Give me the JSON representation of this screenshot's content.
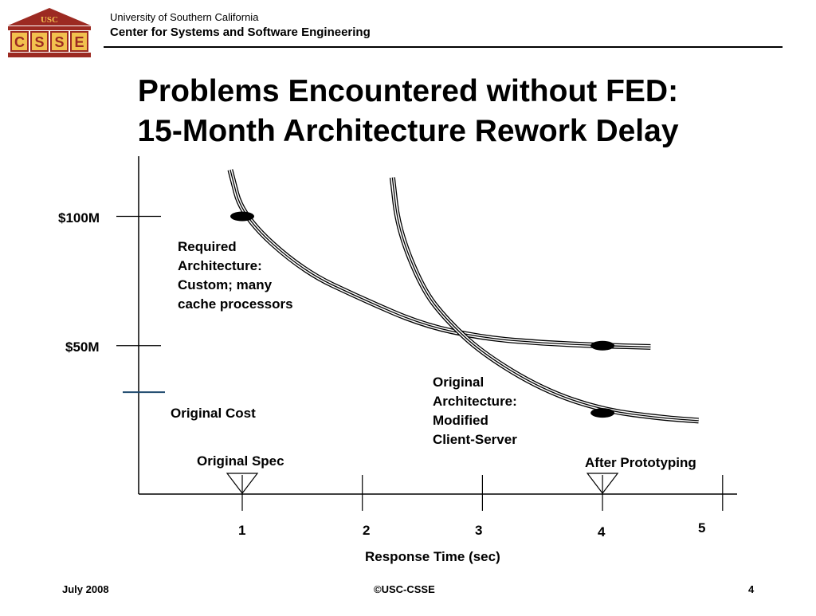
{
  "header": {
    "university": "University of Southern California",
    "center": "Center for Systems and Software Engineering",
    "logo_top_text": "USC",
    "logo_letters": [
      "C",
      "S",
      "S",
      "E"
    ]
  },
  "slide": {
    "title_line1": "Problems Encountered without FED:",
    "title_line2": "15-Month Architecture Rework Delay"
  },
  "chart_data": {
    "type": "line",
    "xlabel": "Response Time (sec)",
    "ylabel": "",
    "x_ticks": [
      "1",
      "2",
      "3",
      "4",
      "5"
    ],
    "y_ticks": [
      "$100M",
      "$50M"
    ],
    "xlim": [
      0.2,
      5.3
    ],
    "ylim": [
      0,
      130
    ],
    "series": [
      {
        "name": "Required Architecture: Custom; many cache processors",
        "label_lines": [
          "Required",
          "Architecture:",
          "Custom; many",
          "cache processors"
        ],
        "points": [
          [
            0.9,
            118
          ],
          [
            1.0,
            100
          ],
          [
            1.5,
            79
          ],
          [
            2.0,
            68
          ],
          [
            2.5,
            58
          ],
          [
            3.0,
            53
          ],
          [
            3.5,
            51
          ],
          [
            4.0,
            50
          ],
          [
            4.4,
            49.5
          ]
        ],
        "marker": [
          1.0,
          100
        ]
      },
      {
        "name": "Original Architecture: Modified Client-Server",
        "label_lines": [
          "Original",
          "Architecture:",
          "Modified",
          "Client-Server"
        ],
        "points": [
          [
            2.25,
            115
          ],
          [
            2.3,
            95
          ],
          [
            2.5,
            72
          ],
          [
            2.7,
            60
          ],
          [
            3.0,
            47
          ],
          [
            3.5,
            33
          ],
          [
            4.0,
            25
          ],
          [
            4.5,
            22
          ],
          [
            4.8,
            21
          ]
        ],
        "marker": [
          4.0,
          24
        ]
      }
    ],
    "marker_on_required_at_4": [
      4.0,
      50
    ],
    "reference": {
      "label": "Original Cost",
      "value": 32
    },
    "annotations": [
      {
        "label": "Original Spec",
        "x": 1.0
      },
      {
        "label": "After Prototyping",
        "x": 4.0
      }
    ]
  },
  "footer": {
    "date": "July 2008",
    "copyright": "©USC-CSSE",
    "page": "4"
  }
}
